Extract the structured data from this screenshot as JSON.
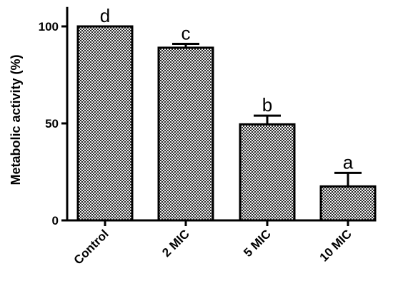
{
  "chart_data": {
    "type": "bar",
    "title": "",
    "xlabel": "",
    "ylabel": "Metabolic activity (%)",
    "ylim": [
      0,
      110
    ],
    "yticks": [
      0,
      50,
      100
    ],
    "categories": [
      "Control",
      "2 MIC",
      "5 MIC",
      "10 MIC"
    ],
    "values": [
      100,
      89,
      49.5,
      17.5
    ],
    "errors": [
      0,
      2,
      4.5,
      7
    ],
    "significance": [
      "d",
      "c",
      "b",
      "a"
    ],
    "bar_pattern": "checkered",
    "colors": {
      "bar_fill_dark": "#2b2b2b",
      "bar_fill_light": "#f2f2f2",
      "axis": "#000000"
    }
  }
}
